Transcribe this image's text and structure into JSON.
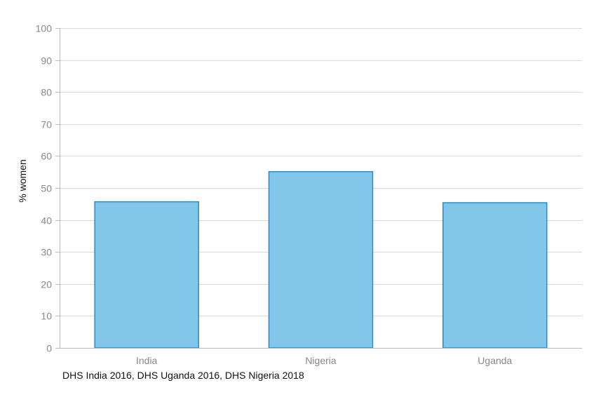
{
  "chart_data": {
    "type": "bar",
    "categories": [
      "India",
      "Nigeria",
      "Uganda"
    ],
    "values": [
      45.8,
      55.2,
      45.5
    ],
    "title": "",
    "xlabel": "",
    "ylabel": "% women",
    "ylim": [
      0,
      100
    ],
    "yticks": [
      "0",
      "10",
      "20",
      "30",
      "40",
      "50",
      "60",
      "70",
      "80",
      "90",
      "100"
    ],
    "grid": true,
    "legend": "none",
    "colors": {
      "bar_fill": "#82c6ea",
      "bar_stroke": "#1f90cf",
      "grid": "#d9d9d9",
      "axis": "#bbbbbb"
    }
  },
  "source_note": "DHS India 2016, DHS Uganda 2016, DHS Nigeria 2018"
}
